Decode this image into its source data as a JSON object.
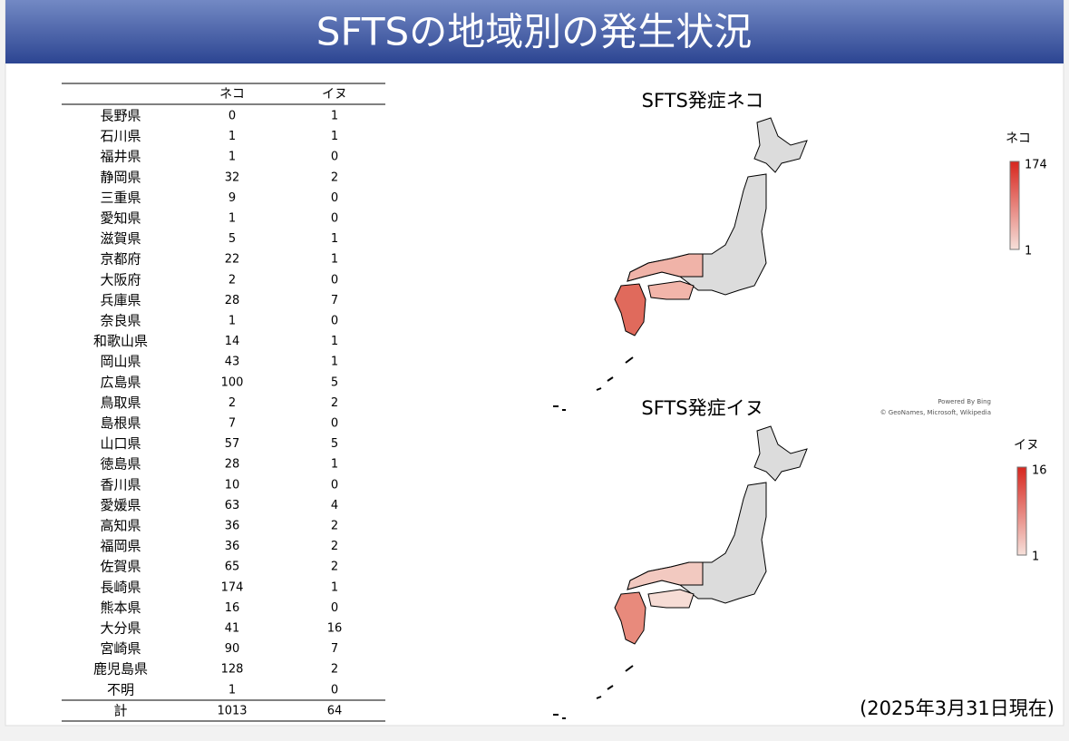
{
  "header": {
    "title": "SFTSの地域別の発生状況"
  },
  "table": {
    "columns": [
      "ネコ",
      "イヌ"
    ],
    "rows": [
      [
        "長野県",
        0,
        1
      ],
      [
        "石川県",
        1,
        1
      ],
      [
        "福井県",
        1,
        0
      ],
      [
        "静岡県",
        32,
        2
      ],
      [
        "三重県",
        9,
        0
      ],
      [
        "愛知県",
        1,
        0
      ],
      [
        "滋賀県",
        5,
        1
      ],
      [
        "京都府",
        22,
        1
      ],
      [
        "大阪府",
        2,
        0
      ],
      [
        "兵庫県",
        28,
        7
      ],
      [
        "奈良県",
        1,
        0
      ],
      [
        "和歌山県",
        14,
        1
      ],
      [
        "岡山県",
        43,
        1
      ],
      [
        "広島県",
        100,
        5
      ],
      [
        "鳥取県",
        2,
        2
      ],
      [
        "島根県",
        7,
        0
      ],
      [
        "山口県",
        57,
        5
      ],
      [
        "徳島県",
        28,
        1
      ],
      [
        "香川県",
        10,
        0
      ],
      [
        "愛媛県",
        63,
        4
      ],
      [
        "高知県",
        36,
        2
      ],
      [
        "福岡県",
        36,
        2
      ],
      [
        "佐賀県",
        65,
        2
      ],
      [
        "長崎県",
        174,
        1
      ],
      [
        "熊本県",
        16,
        0
      ],
      [
        "大分県",
        41,
        16
      ],
      [
        "宮崎県",
        90,
        7
      ],
      [
        "鹿児島県",
        128,
        2
      ],
      [
        "不明",
        1,
        0
      ]
    ],
    "total": [
      "計",
      1013,
      64
    ]
  },
  "maps": [
    {
      "title": "SFTS発症ネコ",
      "legend_title": "ネコ",
      "legend_max": 174,
      "legend_min": 1
    },
    {
      "title": "SFTS発症イヌ",
      "legend_title": "イヌ",
      "legend_max": 16,
      "legend_min": 1
    }
  ],
  "attribution": [
    "Powered By Bing",
    "© GeoNames, Microsoft, Wikipedia"
  ],
  "date_note": "(2025年3月31日現在)"
}
